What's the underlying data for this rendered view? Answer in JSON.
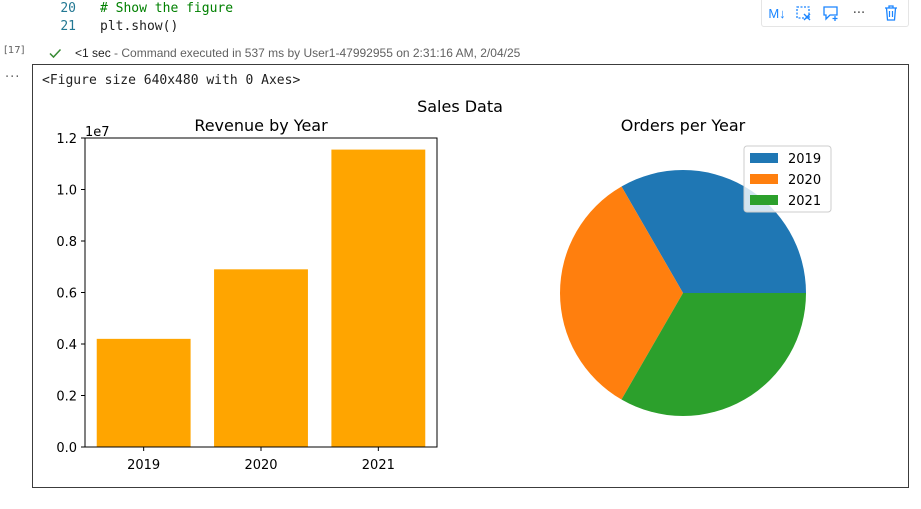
{
  "code": {
    "lines": [
      {
        "number": "20",
        "text": "# Show the figure"
      },
      {
        "number": "21",
        "text": "plt.show()"
      }
    ]
  },
  "toolbar": {
    "markdown_label": "M↓",
    "more_label": "···"
  },
  "execution": {
    "count": "[17]",
    "duration": "<1 sec",
    "message": "- Command executed in 537 ms by User1-47992955 on 2:31:16 AM, 2/04/25"
  },
  "output": {
    "more_label": "···",
    "figure_text": "<Figure size 640x480 with 0 Axes>"
  },
  "chart_data": [
    {
      "type": "bar",
      "suptitle": "Sales Data",
      "title": "Revenue by Year",
      "categories": [
        "2019",
        "2020",
        "2021"
      ],
      "values": [
        4200000,
        6900000,
        11550000
      ],
      "ylim": [
        0,
        12000000
      ],
      "yticks": [
        0,
        2000000,
        4000000,
        6000000,
        8000000,
        10000000,
        12000000
      ],
      "ytick_labels": [
        "0.0",
        "0.2",
        "0.4",
        "0.6",
        "0.8",
        "1.0",
        "1.2"
      ],
      "offset_text": "1e7",
      "xlabel": "",
      "ylabel": "",
      "color": "#ffa500",
      "grid": false
    },
    {
      "type": "pie",
      "title": "Orders per Year",
      "labels": [
        "2019",
        "2020",
        "2021"
      ],
      "values": [
        1,
        1,
        1
      ],
      "colors": [
        "#1f77b4",
        "#ff7f0e",
        "#2ca02c"
      ],
      "legend_position": "upper-right"
    }
  ]
}
